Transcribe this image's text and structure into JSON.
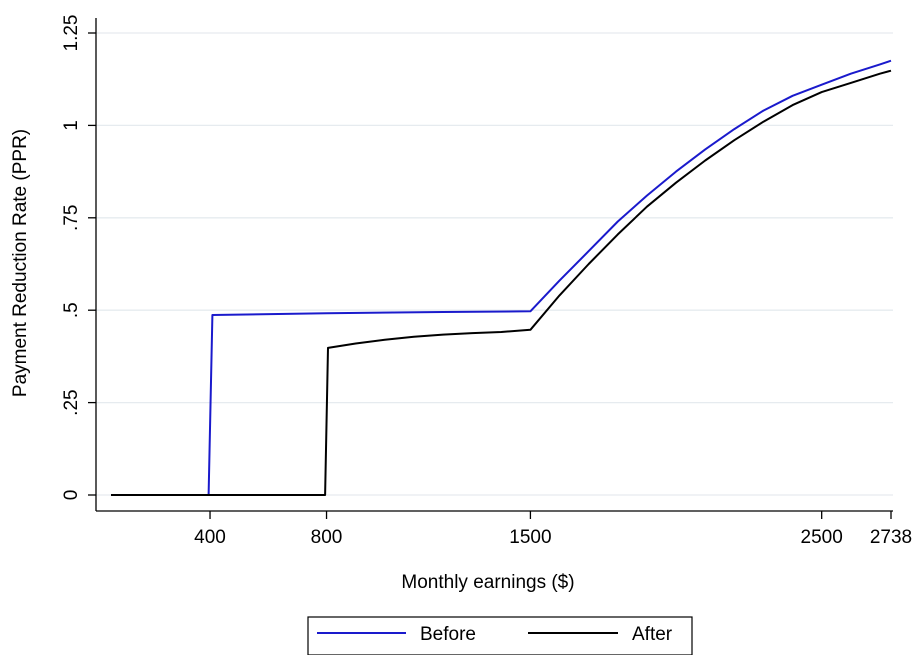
{
  "chart_data": {
    "type": "line",
    "xlabel": "Monthly earnings ($)",
    "ylabel": "Payment Reduction Rate (PPR)",
    "xlim": [
      60,
      2738
    ],
    "ylim": [
      0,
      1.25
    ],
    "grid": true,
    "x_ticks": [
      400,
      800,
      1500,
      2500,
      2738
    ],
    "x_tick_labels": [
      "400",
      "800",
      "1500",
      "2500",
      "2738"
    ],
    "y_ticks": [
      0,
      0.25,
      0.5,
      0.75,
      1,
      1.25
    ],
    "y_tick_labels": [
      "0",
      ".25",
      ".5",
      ".75",
      "1",
      "1.25"
    ],
    "legend_position": "bottom",
    "series": [
      {
        "name": "Before",
        "color": "#1a1acc",
        "points": [
          [
            60,
            0
          ],
          [
            390,
            0
          ],
          [
            395,
            0
          ],
          [
            408,
            0.487
          ],
          [
            800,
            0.492
          ],
          [
            1200,
            0.495
          ],
          [
            1500,
            0.497
          ],
          [
            1600,
            0.58
          ],
          [
            1700,
            0.66
          ],
          [
            1800,
            0.74
          ],
          [
            1900,
            0.81
          ],
          [
            2000,
            0.875
          ],
          [
            2100,
            0.935
          ],
          [
            2200,
            0.99
          ],
          [
            2300,
            1.04
          ],
          [
            2400,
            1.08
          ],
          [
            2500,
            1.11
          ],
          [
            2600,
            1.14
          ],
          [
            2700,
            1.165
          ],
          [
            2738,
            1.175
          ]
        ]
      },
      {
        "name": "After",
        "color": "#000000",
        "points": [
          [
            60,
            0
          ],
          [
            790,
            0
          ],
          [
            795,
            0
          ],
          [
            805,
            0.398
          ],
          [
            900,
            0.41
          ],
          [
            1000,
            0.42
          ],
          [
            1100,
            0.428
          ],
          [
            1200,
            0.434
          ],
          [
            1300,
            0.438
          ],
          [
            1400,
            0.441
          ],
          [
            1500,
            0.447
          ],
          [
            1600,
            0.54
          ],
          [
            1700,
            0.625
          ],
          [
            1800,
            0.705
          ],
          [
            1900,
            0.78
          ],
          [
            2000,
            0.845
          ],
          [
            2100,
            0.905
          ],
          [
            2200,
            0.96
          ],
          [
            2300,
            1.01
          ],
          [
            2400,
            1.055
          ],
          [
            2500,
            1.09
          ],
          [
            2600,
            1.115
          ],
          [
            2700,
            1.14
          ],
          [
            2738,
            1.148
          ]
        ]
      }
    ]
  }
}
